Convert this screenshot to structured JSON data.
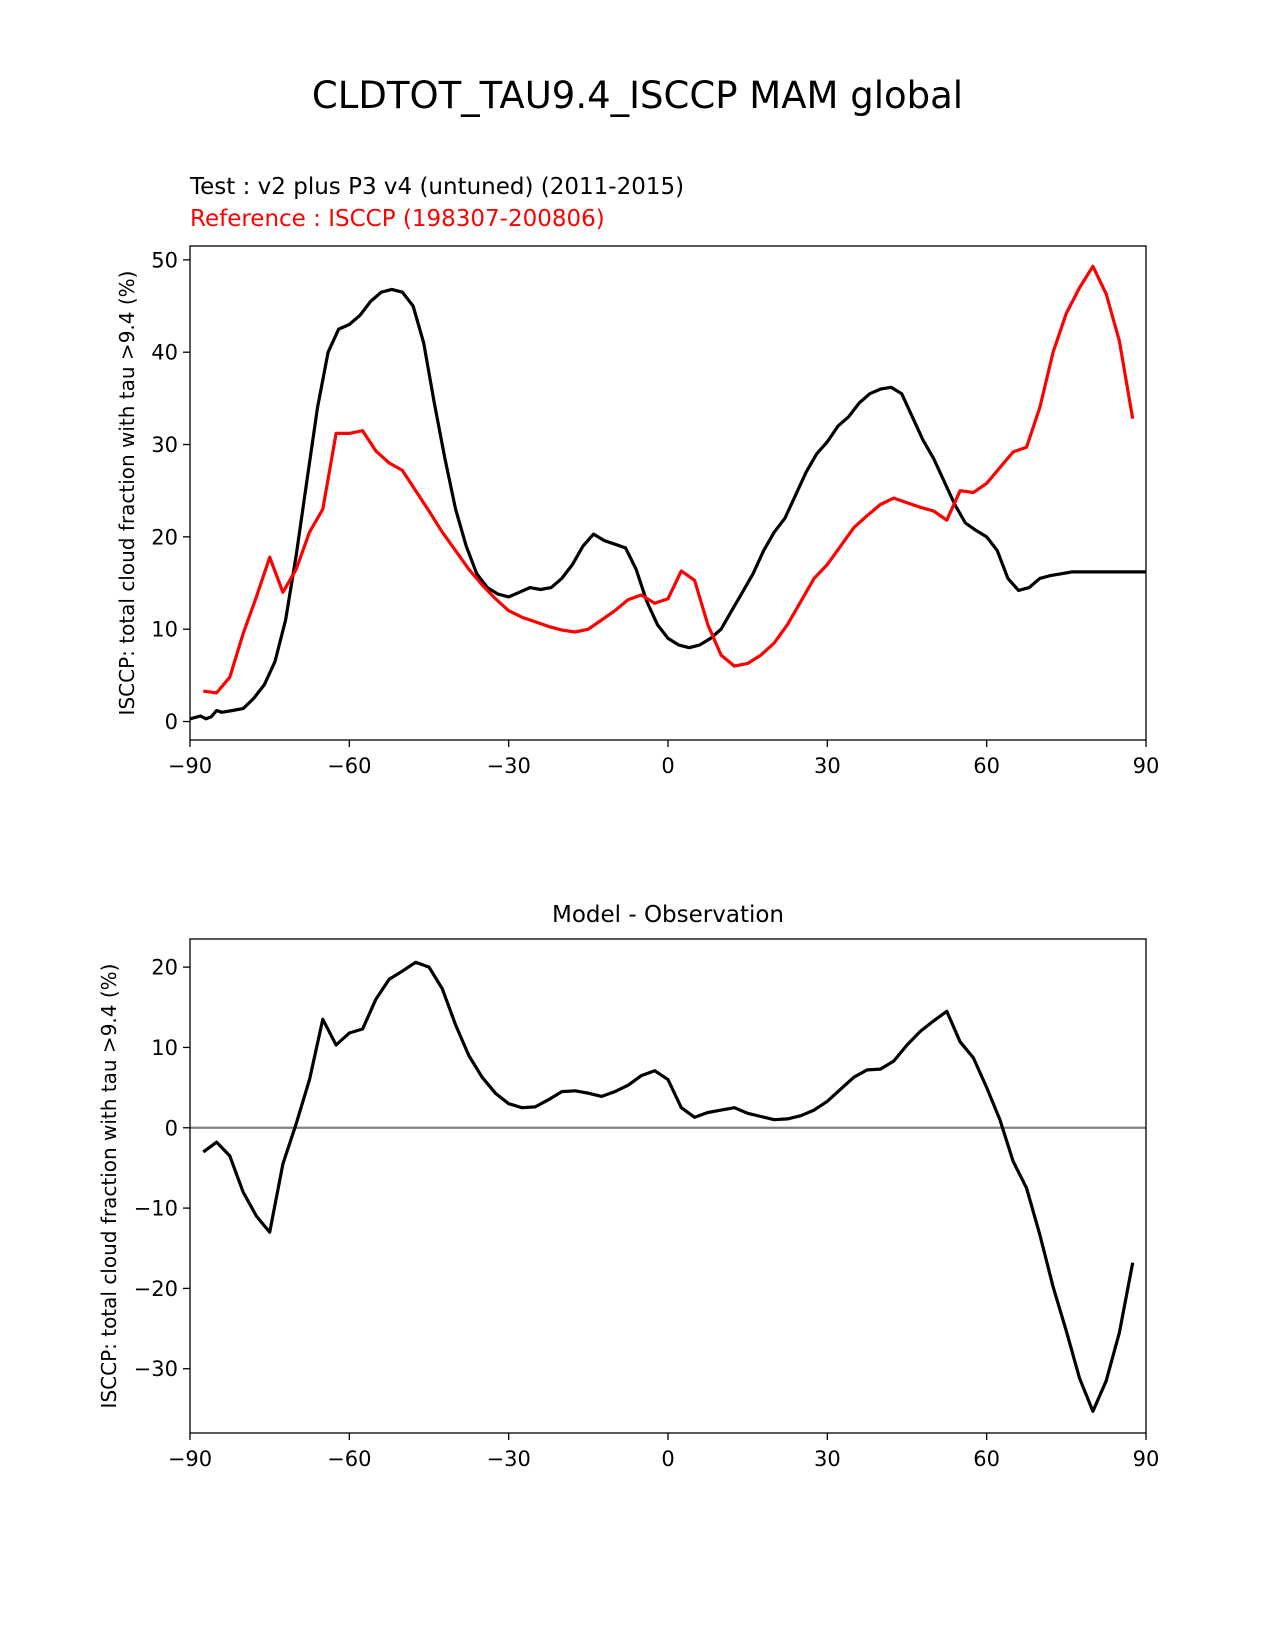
{
  "figure": {
    "title": "CLDTOT_TAU9.4_ISCCP MAM global",
    "test_label": "Test : v2 plus P3 v4 (untuned) (2011-2015)",
    "reference_label": "Reference : ISCCP (198307-200806)",
    "colors": {
      "test": "#000000",
      "reference": "#ff0000",
      "zero_line": "#808080"
    }
  },
  "chart_data": [
    {
      "type": "line",
      "title": "",
      "xlabel": "",
      "ylabel": "ISCCP: total cloud fraction with tau >9.4 (%)",
      "xlim": [
        -90,
        90
      ],
      "ylim": [
        -2,
        51.5
      ],
      "xticks": [
        -90,
        -60,
        -30,
        0,
        30,
        60,
        90
      ],
      "xtick_labels": [
        "−90",
        "−60",
        "−30",
        "0",
        "30",
        "60",
        "90"
      ],
      "yticks": [
        0,
        10,
        20,
        30,
        40,
        50
      ],
      "ytick_labels": [
        "0",
        "10",
        "20",
        "30",
        "40",
        "50"
      ],
      "series": [
        {
          "name": "Test : v2 plus P3 v4 (untuned) (2011-2015)",
          "color": "#000000",
          "x": [
            -90,
            -88,
            -87,
            -86,
            -85,
            -84,
            -82,
            -80,
            -78,
            -76,
            -74,
            -72,
            -70,
            -68,
            -66,
            -64,
            -62,
            -60,
            -58,
            -56,
            -54,
            -52,
            -50,
            -48,
            -46,
            -44,
            -42,
            -40,
            -38,
            -36,
            -34,
            -32,
            -30,
            -28,
            -26,
            -24,
            -22,
            -20,
            -18,
            -16,
            -14,
            -12,
            -10,
            -8,
            -6,
            -4,
            -2,
            0,
            2,
            4,
            6,
            8,
            10,
            12,
            14,
            16,
            18,
            20,
            22,
            24,
            26,
            28,
            30,
            32,
            34,
            36,
            38,
            40,
            42,
            44,
            46,
            48,
            50,
            52,
            54,
            56,
            58,
            60,
            62,
            64,
            66,
            68,
            70,
            72,
            74,
            76,
            78,
            80,
            82,
            84,
            86,
            88,
            90
          ],
          "y": [
            0.3,
            0.6,
            0.3,
            0.5,
            1.2,
            1.0,
            1.2,
            1.4,
            2.5,
            4.0,
            6.5,
            11.0,
            18.0,
            26.0,
            34.0,
            40.0,
            42.5,
            43.0,
            44.0,
            45.5,
            46.5,
            46.8,
            46.5,
            45.0,
            41.0,
            34.5,
            28.5,
            23.0,
            19.0,
            16.0,
            14.5,
            13.8,
            13.5,
            14.0,
            14.5,
            14.3,
            14.5,
            15.5,
            17.0,
            19.0,
            20.3,
            19.6,
            19.2,
            18.8,
            16.5,
            13.0,
            10.5,
            9.0,
            8.3,
            8.0,
            8.3,
            9.0,
            10.0,
            12.0,
            14.0,
            16.0,
            18.5,
            20.5,
            22.0,
            24.5,
            27.0,
            29.0,
            30.3,
            32.0,
            33.0,
            34.5,
            35.5,
            36.0,
            36.2,
            35.5,
            33.0,
            30.5,
            28.5,
            26.0,
            23.5,
            21.5,
            20.7,
            20.0,
            18.5,
            15.5,
            14.2,
            14.5,
            15.5,
            15.8,
            16.0,
            16.2,
            16.2,
            16.2,
            16.2,
            16.2,
            16.2,
            16.2,
            16.2
          ]
        },
        {
          "name": "Reference : ISCCP (198307-200806)",
          "color": "#ff0000",
          "x": [
            -87.5,
            -85,
            -82.5,
            -80,
            -77.5,
            -75,
            -72.5,
            -70,
            -67.5,
            -65,
            -62.5,
            -60,
            -57.5,
            -55,
            -52.5,
            -50,
            -47.5,
            -45,
            -42.5,
            -40,
            -37.5,
            -35,
            -32.5,
            -30,
            -27.5,
            -25,
            -22.5,
            -20,
            -17.5,
            -15,
            -12.5,
            -10,
            -7.5,
            -5,
            -2.5,
            0,
            2.5,
            5,
            7.5,
            10,
            12.5,
            15,
            17.5,
            20,
            22.5,
            25,
            27.5,
            30,
            32.5,
            35,
            37.5,
            40,
            42.5,
            45,
            47.5,
            50,
            52.5,
            55,
            57.5,
            60,
            62.5,
            65,
            67.5,
            70,
            72.5,
            75,
            77.5,
            80,
            82.5,
            85,
            87.5
          ],
          "y": [
            3.3,
            3.1,
            4.8,
            9.5,
            13.5,
            17.8,
            14.0,
            16.5,
            20.5,
            23.0,
            31.2,
            31.2,
            31.5,
            29.3,
            28.0,
            27.2,
            25.0,
            22.8,
            20.5,
            18.5,
            16.5,
            14.8,
            13.3,
            12.0,
            11.3,
            10.8,
            10.3,
            9.9,
            9.7,
            10.0,
            11.0,
            12.0,
            13.2,
            13.7,
            12.8,
            13.3,
            16.3,
            15.3,
            10.5,
            7.2,
            6.0,
            6.3,
            7.2,
            8.5,
            10.5,
            13.0,
            15.5,
            17.0,
            19.0,
            21.0,
            22.3,
            23.5,
            24.2,
            23.7,
            23.2,
            22.8,
            21.8,
            25.0,
            24.8,
            25.8,
            27.5,
            29.2,
            29.7,
            34.0,
            40.0,
            44.2,
            47.0,
            49.3,
            46.3,
            41.2,
            32.8
          ]
        }
      ]
    },
    {
      "type": "line",
      "title": "Model - Observation",
      "xlabel": "",
      "ylabel": "ISCCP: total cloud fraction with tau >9.4 (%)",
      "xlim": [
        -90,
        90
      ],
      "ylim": [
        -38,
        23.5
      ],
      "xticks": [
        -90,
        -60,
        -30,
        0,
        30,
        60,
        90
      ],
      "xtick_labels": [
        "−90",
        "−60",
        "−30",
        "0",
        "30",
        "60",
        "90"
      ],
      "yticks": [
        -30,
        -20,
        -10,
        0,
        10,
        20
      ],
      "ytick_labels": [
        "−30",
        "−20",
        "−10",
        "0",
        "10",
        "20"
      ],
      "reference_line": 0,
      "series": [
        {
          "name": "Model - Observation",
          "color": "#000000",
          "x": [
            -87.5,
            -85,
            -82.5,
            -80,
            -77.5,
            -75,
            -72.5,
            -70,
            -67.5,
            -65,
            -62.5,
            -60,
            -57.5,
            -55,
            -52.5,
            -50,
            -47.5,
            -45,
            -42.5,
            -40,
            -37.5,
            -35,
            -32.5,
            -30,
            -27.5,
            -25,
            -22.5,
            -20,
            -17.5,
            -15,
            -12.5,
            -10,
            -7.5,
            -5,
            -2.5,
            0,
            2.5,
            5,
            7.5,
            10,
            12.5,
            15,
            17.5,
            20,
            22.5,
            25,
            27.5,
            30,
            32.5,
            35,
            37.5,
            40,
            42.5,
            45,
            47.5,
            50,
            52.5,
            55,
            57.5,
            60,
            62.5,
            65,
            67.5,
            70,
            72.5,
            75,
            77.5,
            80,
            82.5,
            85,
            87.5
          ],
          "y": [
            -3.0,
            -1.8,
            -3.5,
            -8.0,
            -11.0,
            -13.0,
            -4.5,
            0.5,
            6.0,
            13.5,
            10.3,
            11.8,
            12.3,
            16.0,
            18.5,
            19.5,
            20.6,
            20.0,
            17.3,
            12.8,
            9.0,
            6.3,
            4.3,
            3.0,
            2.5,
            2.6,
            3.5,
            4.5,
            4.6,
            4.3,
            3.9,
            4.5,
            5.3,
            6.5,
            7.1,
            6.0,
            2.5,
            1.3,
            1.9,
            2.2,
            2.5,
            1.8,
            1.4,
            1.0,
            1.1,
            1.5,
            2.2,
            3.3,
            4.8,
            6.3,
            7.2,
            7.3,
            8.3,
            10.3,
            12.0,
            13.3,
            14.5,
            10.7,
            8.7,
            5.0,
            1.0,
            -4.2,
            -7.5,
            -13.3,
            -19.8,
            -25.3,
            -31.2,
            -35.3,
            -31.5,
            -25.5,
            -16.8
          ]
        }
      ]
    }
  ]
}
